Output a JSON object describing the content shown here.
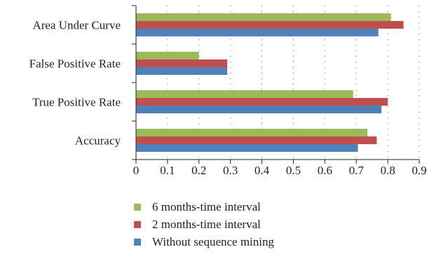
{
  "chart_data": {
    "type": "bar",
    "orientation": "horizontal",
    "categories": [
      "Area Under Curve",
      "False Positive Rate",
      "True Positive Rate",
      "Accuracy"
    ],
    "series": [
      {
        "name": "6 months-time interval",
        "color": "#9bbb59",
        "values": [
          0.81,
          0.2,
          0.69,
          0.735
        ]
      },
      {
        "name": "2 months-time interval",
        "color": "#c0504d",
        "values": [
          0.85,
          0.29,
          0.8,
          0.765
        ]
      },
      {
        "name": "Without sequence mining",
        "color": "#4f81bd",
        "values": [
          0.77,
          0.29,
          0.78,
          0.705
        ]
      }
    ],
    "xlim": [
      0,
      0.9
    ],
    "xticks": [
      "0",
      "0.1",
      "0.2",
      "0.3",
      "0.4",
      "0.5",
      "0.6",
      "0.7",
      "0.8",
      "0.9"
    ],
    "grid": "vertical dotted",
    "legend_position": "bottom",
    "title": "",
    "xlabel": "",
    "ylabel": ""
  }
}
